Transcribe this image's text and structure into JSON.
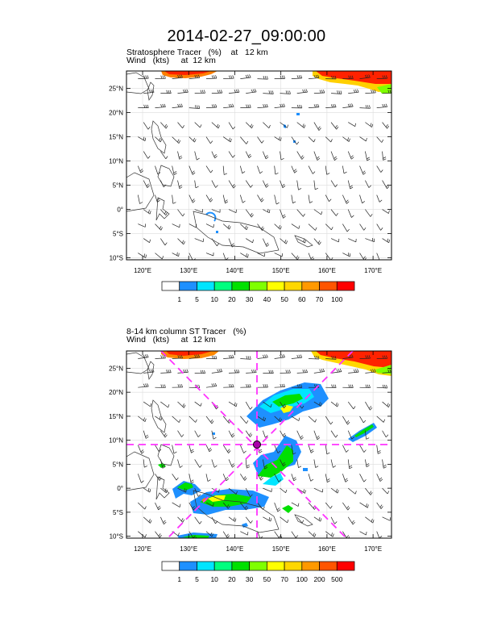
{
  "title": "2014-02-27_09:00:00",
  "panels": [
    {
      "id": "top",
      "label_line1": "Stratosphere Tracer   (%)    at   12 km",
      "label_line2": "Wind   (kts)     at  12 km",
      "lon_ticks": [
        "120°E",
        "130°E",
        "140°E",
        "150°E",
        "160°E",
        "170°E"
      ],
      "lat_ticks": [
        "25°N",
        "20°N",
        "15°N",
        "10°N",
        "5°N",
        "0°",
        "5°S",
        "10°S"
      ],
      "colorbar_labels": [
        "1",
        "5",
        "10",
        "20",
        "30",
        "40",
        "50",
        "60",
        "70",
        "100"
      ],
      "colorbar_colors": [
        "#ffffff",
        "#1e90ff",
        "#00e5ff",
        "#00ff7f",
        "#00e000",
        "#7fff00",
        "#ffff00",
        "#ffd700",
        "#ff9900",
        "#ff5500",
        "#ff0000"
      ]
    },
    {
      "id": "bottom",
      "label_line1": "8-14 km column ST Tracer   (%)",
      "label_line2": "Wind   (kts)     at  12 km",
      "lon_ticks": [
        "120°E",
        "130°E",
        "140°E",
        "150°E",
        "160°E",
        "170°E"
      ],
      "lat_ticks": [
        "25°N",
        "20°N",
        "15°N",
        "10°N",
        "5°N",
        "0°",
        "5°S",
        "10°S"
      ],
      "colorbar_labels": [
        "1",
        "5",
        "10",
        "20",
        "30",
        "50",
        "70",
        "100",
        "200",
        "500"
      ],
      "colorbar_colors": [
        "#ffffff",
        "#1e90ff",
        "#00e5ff",
        "#00ff7f",
        "#00e000",
        "#7fff00",
        "#ffff00",
        "#ffd700",
        "#ff9900",
        "#ff5500",
        "#ff0000"
      ],
      "marker_color": "#ff33ff"
    }
  ]
}
